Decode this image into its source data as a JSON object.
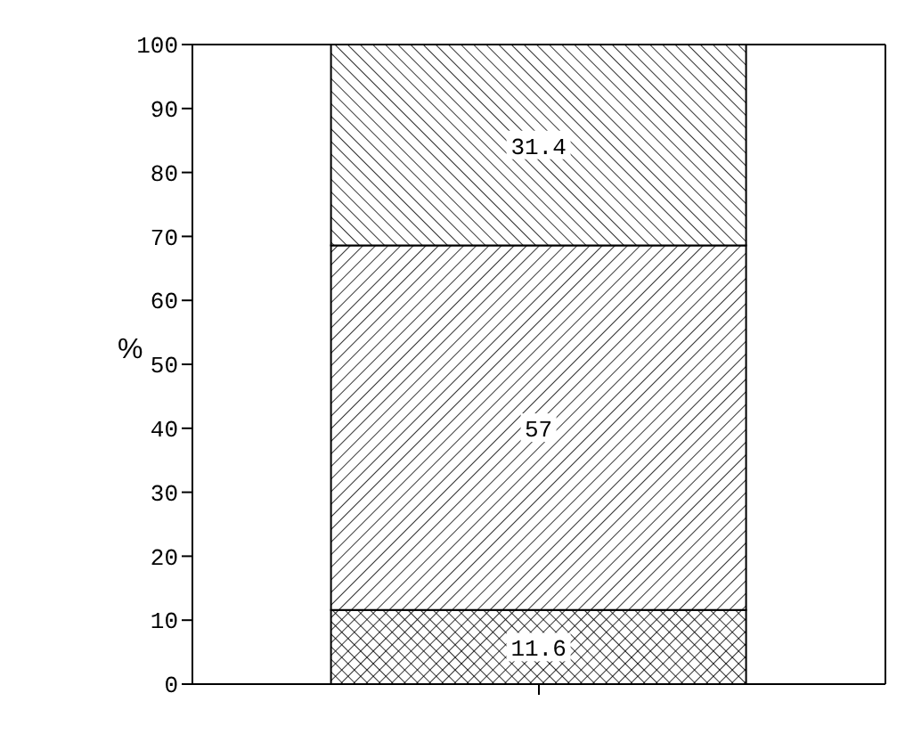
{
  "chart_data": {
    "type": "bar",
    "stacked": true,
    "ylabel": "%",
    "categories": [
      null
    ],
    "series": [
      {
        "color": "#000000",
        "values": [
          11.6
        ]
      },
      {
        "color": "#000000",
        "values": [
          57
        ]
      },
      {
        "color": "#000000",
        "values": [
          31.4
        ]
      }
    ],
    "ylim": [
      0,
      100
    ],
    "yticks": [
      0,
      10,
      20,
      30,
      40,
      50,
      60,
      70,
      80,
      90,
      100
    ],
    "data_labels": true
  }
}
